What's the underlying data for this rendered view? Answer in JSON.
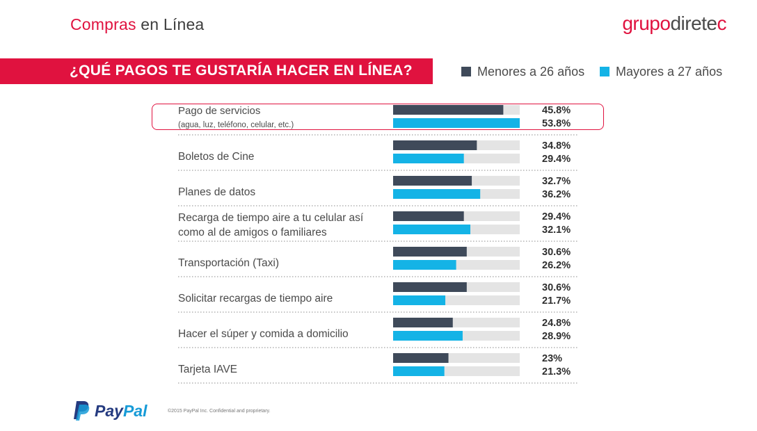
{
  "header": {
    "title_accent": "Compras",
    "title_rest": " en Línea",
    "brand_part1": "grupo",
    "brand_part2": "direte",
    "brand_part3": "c"
  },
  "banner": {
    "title": "¿QUÉ PAGOS TE GUSTARÍA HACER EN LÍNEA?"
  },
  "colors": {
    "accent": "#e0123f",
    "series1": "#3f4a5a",
    "series2": "#14b3e6",
    "track": "#e4e4e4"
  },
  "chart_data": {
    "type": "bar",
    "orientation": "horizontal",
    "title": "¿QUÉ PAGOS TE GUSTARÍA HACER EN LÍNEA?",
    "legend": "top-right",
    "xlim": [
      0,
      100
    ],
    "categories": [
      [
        "Pago de servicios",
        "(agua, luz, teléfono, celular, etc.)"
      ],
      [
        "Boletos de Cine"
      ],
      [
        "Planes de datos"
      ],
      [
        "Recarga de tiempo aire a tu celular así",
        "como al de amigos o familiares"
      ],
      [
        "Transportación (Taxi)"
      ],
      [
        "Solicitar recargas de tiempo aire"
      ],
      [
        "Hacer el súper y comida a domicilio"
      ],
      [
        "Tarjeta IAVE"
      ]
    ],
    "series": [
      {
        "name": "Menores a 26 años",
        "values": [
          45.8,
          34.8,
          32.7,
          29.4,
          30.6,
          30.6,
          24.8,
          23.0
        ],
        "labels": [
          "45.8%",
          "34.8%",
          "32.7%",
          "29.4%",
          "30.6%",
          "30.6%",
          "24.8%",
          "23%"
        ]
      },
      {
        "name": "Mayores a 27 años",
        "values": [
          53.8,
          29.4,
          36.2,
          32.1,
          26.2,
          21.7,
          28.9,
          21.3
        ],
        "labels": [
          "53.8%",
          "29.4%",
          "36.2%",
          "32.1%",
          "26.2%",
          "21.7%",
          "28.9%",
          "21.3%"
        ]
      }
    ]
  },
  "footer": {
    "brand_part1": "Pay",
    "brand_part2": "Pal",
    "copyright": "©2015 PayPal Inc. Confidential and proprietary."
  }
}
